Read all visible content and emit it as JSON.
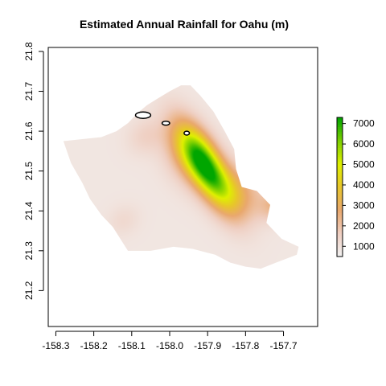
{
  "chart_data": {
    "type": "heatmap",
    "title": "Estimated Annual Rainfall for Oahu (m)",
    "xlabel": "",
    "ylabel": "",
    "xlim": [
      -158.32,
      -157.61
    ],
    "ylim": [
      21.11,
      21.81
    ],
    "x_ticks": [
      -158.3,
      -158.2,
      -158.1,
      -158.0,
      -157.9,
      -157.8,
      -157.7
    ],
    "x_tick_labels": [
      "-158.3",
      "-158.2",
      "-158.1",
      "-158.0",
      "-157.9",
      "-157.8",
      "-157.7"
    ],
    "y_ticks": [
      21.2,
      21.3,
      21.4,
      21.5,
      21.6,
      21.7,
      21.8
    ],
    "y_tick_labels": [
      "21.2",
      "21.3",
      "21.4",
      "21.5",
      "21.6",
      "21.7",
      "21.8"
    ],
    "legend": {
      "placement": "right",
      "min": 500,
      "max": 7300,
      "ticks": [
        1000,
        2000,
        3000,
        4000,
        5000,
        6000,
        7000
      ],
      "tick_labels": [
        "1000",
        "2000",
        "3000",
        "4000",
        "5000",
        "6000",
        "7000"
      ],
      "colors": [
        "#f2f2f2",
        "#efcfc2",
        "#e9a86e",
        "#e8c52c",
        "#dff000",
        "#7ccf00",
        "#00a600"
      ]
    },
    "island_outline": [
      [
        -158.28,
        21.575
      ],
      [
        -158.23,
        21.58
      ],
      [
        -158.18,
        21.585
      ],
      [
        -158.14,
        21.6
      ],
      [
        -158.11,
        21.62
      ],
      [
        -158.085,
        21.645
      ],
      [
        -158.06,
        21.665
      ],
      [
        -158.035,
        21.68
      ],
      [
        -158.0,
        21.7
      ],
      [
        -157.97,
        21.715
      ],
      [
        -157.945,
        21.715
      ],
      [
        -157.92,
        21.69
      ],
      [
        -157.885,
        21.65
      ],
      [
        -157.855,
        21.6
      ],
      [
        -157.83,
        21.555
      ],
      [
        -157.825,
        21.505
      ],
      [
        -157.81,
        21.46
      ],
      [
        -157.77,
        21.45
      ],
      [
        -157.735,
        21.415
      ],
      [
        -157.745,
        21.37
      ],
      [
        -157.705,
        21.33
      ],
      [
        -157.66,
        21.31
      ],
      [
        -157.665,
        21.29
      ],
      [
        -157.72,
        21.27
      ],
      [
        -157.76,
        21.255
      ],
      [
        -157.8,
        21.26
      ],
      [
        -157.84,
        21.27
      ],
      [
        -157.88,
        21.29
      ],
      [
        -157.94,
        21.305
      ],
      [
        -157.99,
        21.31
      ],
      [
        -158.05,
        21.3
      ],
      [
        -158.09,
        21.3
      ],
      [
        -158.11,
        21.3
      ],
      [
        -158.13,
        21.33
      ],
      [
        -158.15,
        21.36
      ],
      [
        -158.18,
        21.39
      ],
      [
        -158.21,
        21.43
      ],
      [
        -158.23,
        21.47
      ],
      [
        -158.26,
        21.52
      ]
    ],
    "rainfall_peaks": [
      {
        "lon": -157.905,
        "lat": 21.51,
        "value": 7000,
        "sx": 0.03,
        "sy": 0.08
      },
      {
        "lon": -157.93,
        "lat": 21.56,
        "value": 2500,
        "sx": 0.04,
        "sy": 0.06
      },
      {
        "lon": -157.86,
        "lat": 21.41,
        "value": 2500,
        "sx": 0.04,
        "sy": 0.05
      },
      {
        "lon": -157.795,
        "lat": 21.335,
        "value": 2400,
        "sx": 0.03,
        "sy": 0.025
      },
      {
        "lon": -158.16,
        "lat": 21.51,
        "value": 1300,
        "sx": 0.03,
        "sy": 0.025
      },
      {
        "lon": -158.0,
        "lat": 21.66,
        "value": 1500,
        "sx": 0.035,
        "sy": 0.03
      }
    ],
    "white_islands": [
      {
        "lon": -158.07,
        "lat": 21.64,
        "rx": 0.02,
        "ry": 0.008
      },
      {
        "lon": -158.01,
        "lat": 21.62,
        "rx": 0.01,
        "ry": 0.005
      },
      {
        "lon": -157.955,
        "lat": 21.595,
        "rx": 0.007,
        "ry": 0.005
      }
    ]
  }
}
